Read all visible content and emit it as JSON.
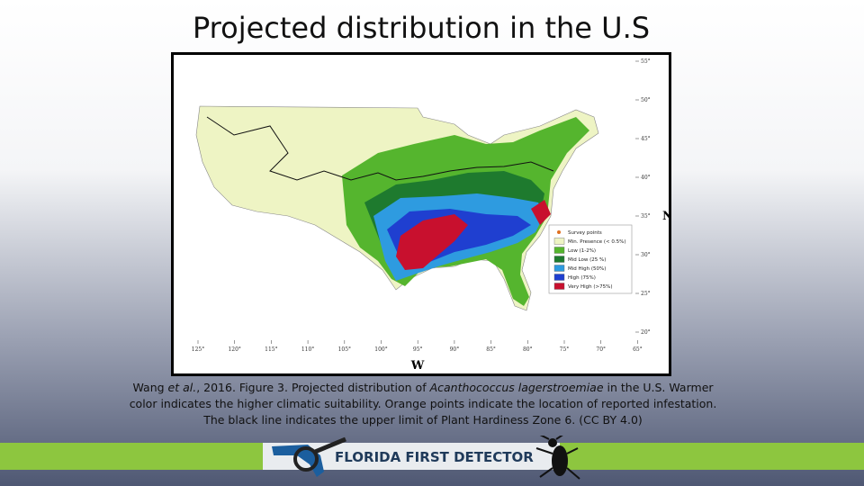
{
  "header": {
    "title": "Projected distribution in the U.S"
  },
  "map": {
    "north_label": "N",
    "west_label": "W",
    "lat_ticks": [
      "55°",
      "50°",
      "45°",
      "40°",
      "35°",
      "30°",
      "25°",
      "20°"
    ],
    "lon_ticks": [
      "125°",
      "120°",
      "115°",
      "110°",
      "105°",
      "100°",
      "95°",
      "90°",
      "85°",
      "80°",
      "75°",
      "70°",
      "65°"
    ],
    "legend": [
      "Survey points",
      "Min. Presence (< 0.5%)",
      "Low (1-2%)",
      "Mid Low (25 %)",
      "Mid High (50%)",
      "High (75%)",
      "Very High (>75%)"
    ]
  },
  "caption": {
    "author": "Wang",
    "author_em": "et al.",
    "citation": ", 2016. Figure 3.",
    "text1": "Projected distribution of",
    "species": "Acanthococcus lagerstroemiae",
    "text2": "in the U.S. Warmer color indicates the higher climatic suitability. Orange points indicate the location of reported infestation. The black line indicates the upper limit of Plant Hardiness Zone 6. (CC BY 4.0)"
  },
  "footer": {
    "brand": "FLORIDA FIRST DETECTOR"
  }
}
